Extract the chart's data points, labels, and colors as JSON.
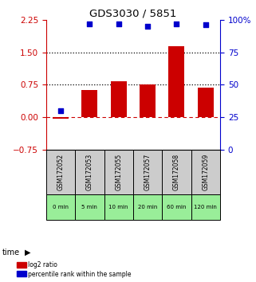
{
  "title": "GDS3030 / 5851",
  "samples": [
    "GSM172052",
    "GSM172053",
    "GSM172055",
    "GSM172057",
    "GSM172058",
    "GSM172059"
  ],
  "time_labels": [
    "0 min",
    "5 min",
    "10 min",
    "20 min",
    "60 min",
    "120 min"
  ],
  "log2_ratio": [
    -0.03,
    0.62,
    0.82,
    0.76,
    1.63,
    0.68
  ],
  "percentile_rank": [
    30,
    97,
    97,
    95,
    97,
    96
  ],
  "ylim_left": [
    -0.75,
    2.25
  ],
  "ylim_right": [
    0,
    100
  ],
  "yticks_left": [
    -0.75,
    0,
    0.75,
    1.5,
    2.25
  ],
  "yticks_right": [
    0,
    25,
    50,
    75,
    100
  ],
  "hline_dashed": 0.0,
  "hline_dotted1": 0.75,
  "hline_dotted2": 1.5,
  "bar_color": "#cc0000",
  "dot_color": "#0000cc",
  "legend_bar_label": "log2 ratio",
  "legend_dot_label": "percentile rank within the sample",
  "sample_bg_color": "#cccccc",
  "time_bg_color": "#99ee99",
  "time_label": "time",
  "bar_width": 0.55
}
